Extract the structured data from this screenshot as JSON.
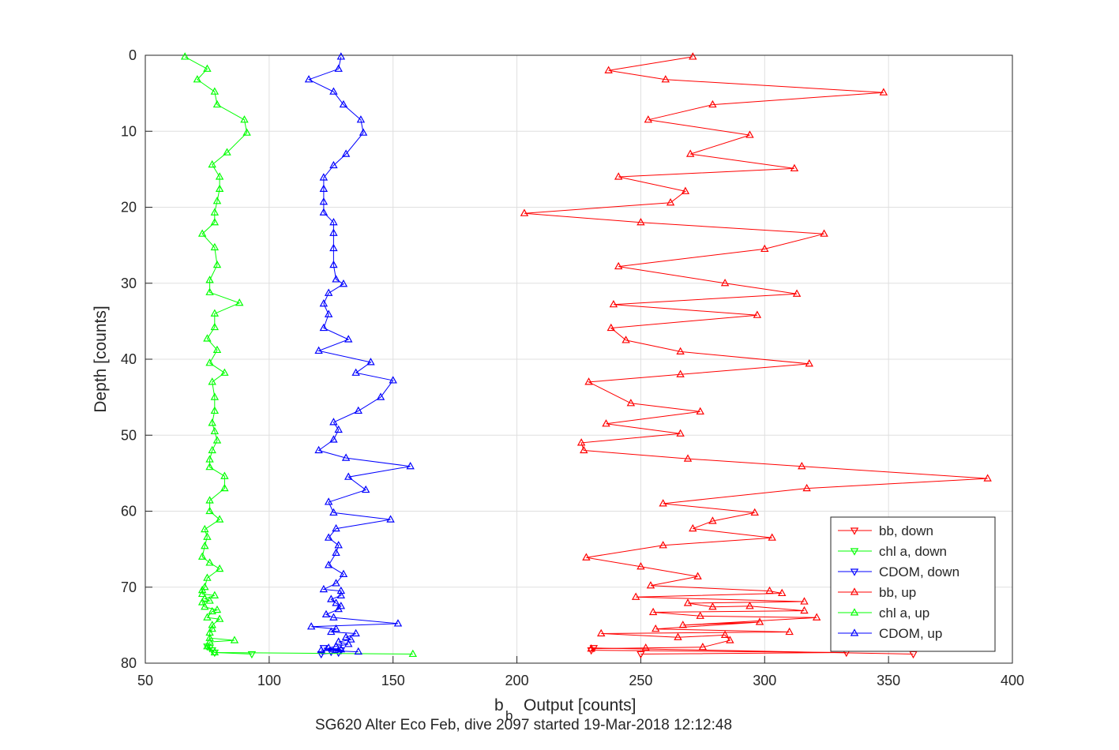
{
  "chart_data": {
    "type": "line",
    "xlabel_main": "b",
    "xlabel_sub": "b",
    "xlabel_rest": "Output [counts]",
    "ylabel": "Depth [counts]",
    "caption": "SG620 Alter Eco Feb, dive 2097 started 19-Mar-2018 12:12:48",
    "xlim": [
      50,
      400
    ],
    "ylim": [
      0,
      80
    ],
    "y_reversed": true,
    "grid": true,
    "legend_position": "bottom-right",
    "xticks": [
      50,
      100,
      150,
      200,
      250,
      300,
      350,
      400
    ],
    "yticks": [
      0,
      10,
      20,
      30,
      40,
      50,
      60,
      70,
      80
    ],
    "series": [
      {
        "name": "bb, down",
        "color": "#ff0000",
        "marker": "triangle-down",
        "x": [
          250,
          333,
          230,
          231,
          360
        ],
        "y": [
          78.8,
          78.6,
          78.3,
          78.0,
          78.8
        ]
      },
      {
        "name": "chl a, down",
        "color": "#00ff00",
        "marker": "triangle-down",
        "x": [
          75,
          76,
          77,
          78,
          93
        ],
        "y": [
          77.8,
          78.0,
          78.3,
          78.6,
          78.8
        ]
      },
      {
        "name": "CDOM, down",
        "color": "#0000ff",
        "marker": "triangle-down",
        "x": [
          129,
          122,
          125,
          128,
          121
        ],
        "y": [
          78.3,
          78.0,
          78.5,
          78.6,
          78.8
        ]
      },
      {
        "name": "bb, up",
        "color": "#ff0000",
        "marker": "triangle-up",
        "x": [
          271,
          237,
          260,
          348,
          279,
          253,
          294,
          270,
          312,
          241,
          268,
          262,
          203,
          250,
          324,
          300,
          241,
          284,
          313,
          239,
          297,
          238,
          244,
          266,
          318,
          266,
          229,
          246,
          274,
          236,
          266,
          226,
          227,
          269,
          315,
          390,
          317,
          259,
          296,
          279,
          271,
          303,
          259,
          228,
          250,
          273,
          254,
          302,
          307,
          248,
          316,
          269,
          279,
          294,
          316,
          255,
          274,
          321,
          267,
          298,
          256,
          310,
          234,
          265,
          284,
          286,
          275,
          230,
          252
        ],
        "y": [
          0.2,
          2.0,
          3.2,
          4.9,
          6.5,
          8.5,
          10.5,
          13.0,
          14.9,
          16.0,
          17.9,
          19.4,
          20.8,
          22.0,
          23.5,
          25.5,
          27.8,
          30.0,
          31.4,
          32.8,
          34.2,
          35.9,
          37.5,
          39.0,
          40.6,
          42.0,
          43.0,
          45.8,
          46.9,
          48.5,
          49.8,
          51.0,
          52.0,
          53.1,
          54.1,
          55.7,
          57.0,
          59.0,
          60.2,
          61.3,
          62.3,
          63.5,
          64.5,
          66.1,
          67.3,
          68.6,
          69.8,
          70.5,
          70.8,
          71.3,
          71.9,
          72.1,
          72.6,
          72.5,
          73.1,
          73.3,
          73.8,
          74.0,
          75.0,
          74.6,
          75.5,
          75.9,
          76.1,
          76.6,
          76.3,
          77.0,
          77.9,
          78.1,
          78.0
        ]
      },
      {
        "name": "chl a, up",
        "color": "#00ff00",
        "marker": "triangle-up",
        "x": [
          66,
          75,
          71,
          78,
          79,
          90,
          91,
          83,
          77,
          80,
          80,
          79,
          78,
          78,
          73,
          78,
          79,
          76,
          76,
          88,
          78,
          78,
          75,
          79,
          76,
          82,
          77,
          78,
          78,
          77,
          78,
          79,
          77,
          76,
          76,
          82,
          82,
          76,
          76,
          80,
          74,
          75,
          74,
          73,
          76,
          80,
          75,
          74,
          73,
          73,
          78,
          74,
          76,
          73,
          74,
          79,
          77,
          75,
          80,
          77,
          77,
          76,
          76,
          86,
          76,
          75,
          78,
          158
        ],
        "y": [
          0.2,
          1.8,
          3.2,
          4.8,
          6.5,
          8.5,
          10.2,
          12.8,
          14.4,
          16.0,
          17.6,
          19.2,
          20.7,
          22.0,
          23.5,
          25.3,
          27.6,
          29.6,
          31.2,
          32.6,
          34.0,
          35.8,
          37.3,
          38.8,
          40.5,
          41.8,
          43.0,
          45.0,
          46.8,
          48.4,
          49.5,
          50.7,
          52.0,
          53.2,
          54.2,
          55.4,
          57.0,
          58.6,
          60.0,
          61.1,
          62.4,
          63.4,
          64.6,
          66.0,
          66.8,
          67.6,
          68.8,
          70.0,
          70.4,
          70.9,
          71.1,
          71.5,
          71.8,
          72.0,
          72.6,
          73.0,
          73.2,
          74.0,
          74.2,
          75.0,
          75.5,
          76.0,
          76.7,
          77.0,
          77.2,
          77.8,
          78.6,
          78.8
        ]
      },
      {
        "name": "CDOM, up",
        "color": "#0000ff",
        "marker": "triangle-up",
        "x": [
          129,
          128,
          116,
          126,
          130,
          137,
          138,
          131,
          126,
          122,
          122,
          122,
          122,
          126,
          126,
          126,
          126,
          127,
          130,
          124,
          122,
          124,
          122,
          132,
          120,
          141,
          135,
          150,
          145,
          136,
          126,
          128,
          126,
          120,
          131,
          157,
          132,
          139,
          124,
          126,
          149,
          127,
          124,
          128,
          127,
          124,
          130,
          127,
          122,
          129,
          129,
          125,
          127,
          129,
          128,
          123,
          126,
          152,
          117,
          127,
          125,
          135,
          131,
          133,
          128,
          132,
          127,
          124,
          129,
          121,
          136
        ],
        "y": [
          0.2,
          1.8,
          3.2,
          4.8,
          6.5,
          8.5,
          10.2,
          13.0,
          14.5,
          16.1,
          17.6,
          19.3,
          20.7,
          22.0,
          23.4,
          25.4,
          27.6,
          29.5,
          30.1,
          31.3,
          32.7,
          34.1,
          35.9,
          37.4,
          38.9,
          40.4,
          41.8,
          42.8,
          45.0,
          46.8,
          48.3,
          49.3,
          50.6,
          52.0,
          53.0,
          54.1,
          55.5,
          57.2,
          58.8,
          60.2,
          61.1,
          62.3,
          63.5,
          64.5,
          65.5,
          67.1,
          68.3,
          69.5,
          70.3,
          70.5,
          71.1,
          71.6,
          72.1,
          72.5,
          72.9,
          73.6,
          74.0,
          74.8,
          75.2,
          75.5,
          75.9,
          76.1,
          76.6,
          76.9,
          77.2,
          77.5,
          77.8,
          78.0,
          78.2,
          78.3,
          78.5
        ]
      }
    ]
  }
}
